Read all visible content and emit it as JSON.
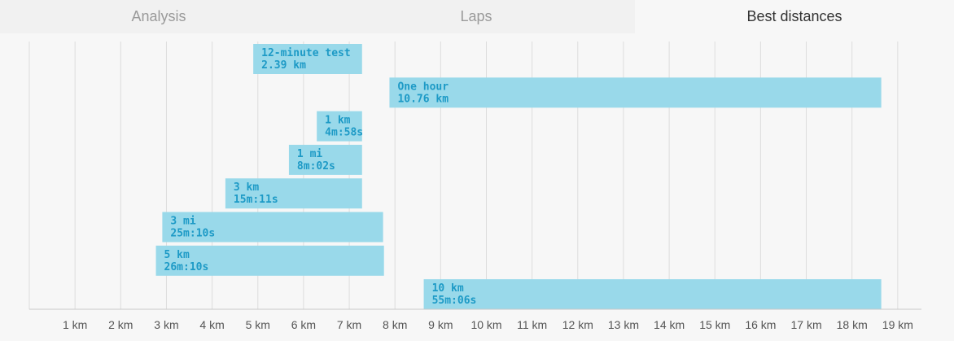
{
  "tabs": [
    {
      "label": "Analysis",
      "active": false
    },
    {
      "label": "Laps",
      "active": false
    },
    {
      "label": "Best distances",
      "active": true
    }
  ],
  "colors": {
    "bar_fill": "#99d9ea",
    "bar_text": "#1d9ac6",
    "grid": "#dddddd",
    "axis": "#c8c8c8",
    "tick_text": "#555555"
  },
  "chart_data": {
    "type": "bar",
    "orientation": "horizontal",
    "xunit": "km",
    "xlim": [
      0,
      19.6
    ],
    "xticks": [
      {
        "value": 1,
        "label": "1 km"
      },
      {
        "value": 2,
        "label": "2 km"
      },
      {
        "value": 3,
        "label": "3 km"
      },
      {
        "value": 4,
        "label": "4 km"
      },
      {
        "value": 5,
        "label": "5 km"
      },
      {
        "value": 6,
        "label": "6 km"
      },
      {
        "value": 7,
        "label": "7 km"
      },
      {
        "value": 8,
        "label": "8 km"
      },
      {
        "value": 9,
        "label": "9 km"
      },
      {
        "value": 10,
        "label": "10 km"
      },
      {
        "value": 11,
        "label": "11 km"
      },
      {
        "value": 12,
        "label": "12 km"
      },
      {
        "value": 13,
        "label": "13 km"
      },
      {
        "value": 14,
        "label": "14 km"
      },
      {
        "value": 15,
        "label": "15 km"
      },
      {
        "value": 16,
        "label": "16 km"
      },
      {
        "value": 17,
        "label": "17 km"
      },
      {
        "value": 18,
        "label": "18 km"
      },
      {
        "value": 19,
        "label": "19 km"
      }
    ],
    "grid": true,
    "bars": [
      {
        "name": "12-minute test",
        "value": "2.39 km",
        "start_km": 4.9,
        "end_km": 7.28
      },
      {
        "name": "One hour",
        "value": "10.76 km",
        "start_km": 7.88,
        "end_km": 18.64
      },
      {
        "name": "1 km",
        "value": "4m:58s",
        "start_km": 6.29,
        "end_km": 7.28
      },
      {
        "name": "1 mi",
        "value": "8m:02s",
        "start_km": 5.68,
        "end_km": 7.28
      },
      {
        "name": "3 km",
        "value": "15m:11s",
        "start_km": 4.29,
        "end_km": 7.28
      },
      {
        "name": "3 mi",
        "value": "25m:10s",
        "start_km": 2.91,
        "end_km": 7.74
      },
      {
        "name": "5 km",
        "value": "26m:10s",
        "start_km": 2.77,
        "end_km": 7.76
      },
      {
        "name": "10 km",
        "value": "55m:06s",
        "start_km": 8.63,
        "end_km": 18.64
      }
    ]
  }
}
